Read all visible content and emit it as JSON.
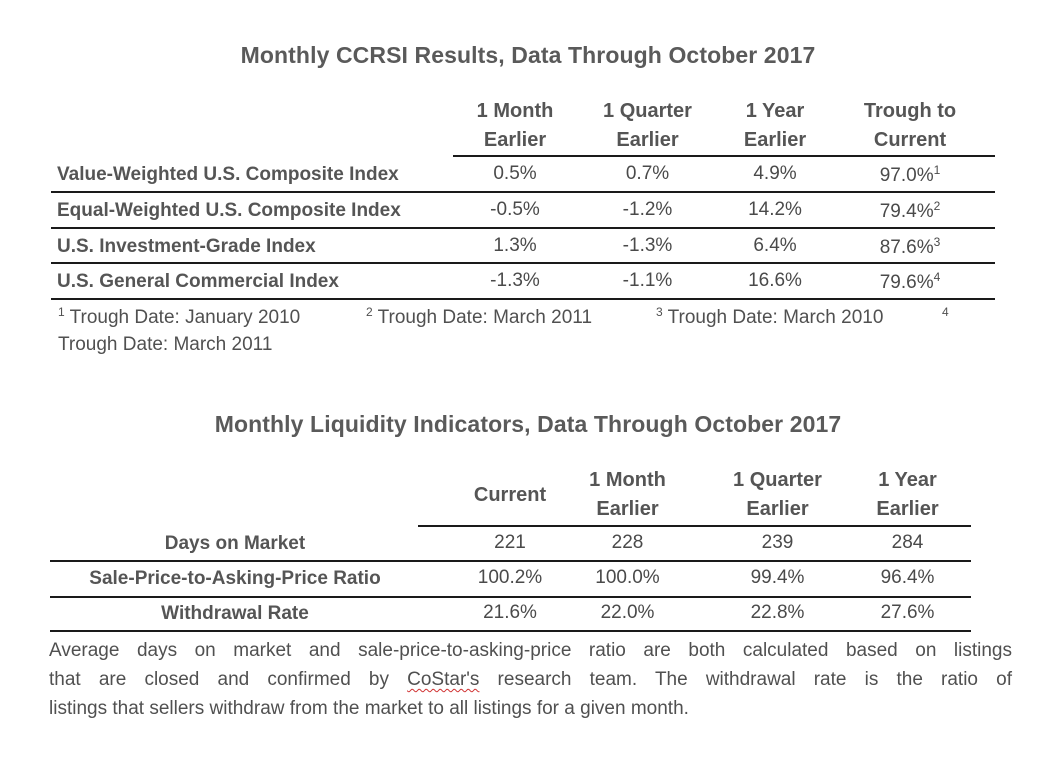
{
  "ccrsi": {
    "title": "Monthly CCRSI Results, Data Through October 2017",
    "columns": [
      {
        "line1": "1 Month",
        "line2": "Earlier"
      },
      {
        "line1": "1 Quarter",
        "line2": "Earlier"
      },
      {
        "line1": "1 Year",
        "line2": "Earlier"
      },
      {
        "line1": "Trough to",
        "line2": "Current"
      }
    ],
    "rows": [
      {
        "label": "Value-Weighted U.S. Composite Index",
        "values": [
          "0.5%",
          "0.7%",
          "4.9%",
          "97.0%"
        ],
        "note": "1"
      },
      {
        "label": "Equal-Weighted U.S. Composite Index",
        "values": [
          "-0.5%",
          "-1.2%",
          "14.2%",
          "79.4%"
        ],
        "note": "2"
      },
      {
        "label": "U.S. Investment-Grade Index",
        "values": [
          "1.3%",
          "-1.3%",
          "6.4%",
          "87.6%"
        ],
        "note": "3"
      },
      {
        "label": "U.S. General Commercial Index",
        "values": [
          "-1.3%",
          "-1.1%",
          "16.6%",
          "79.6%"
        ],
        "note": "4"
      }
    ],
    "footnotes": [
      {
        "num": "1",
        "text": " Trough Date: January 2010"
      },
      {
        "num": "2",
        "text": " Trough Date: March 2011"
      },
      {
        "num": "3",
        "text": " Trough Date: March 2010"
      },
      {
        "num": "4",
        "text": "Trough Date: March 2011"
      }
    ]
  },
  "liquidity": {
    "title": "Monthly Liquidity Indicators, Data Through October 2017",
    "columns": [
      {
        "line1": "Current",
        "line2": ""
      },
      {
        "line1": "1 Month",
        "line2": "Earlier"
      },
      {
        "line1": "1 Quarter",
        "line2": "Earlier"
      },
      {
        "line1": "1 Year",
        "line2": "Earlier"
      }
    ],
    "rows": [
      {
        "label": "Days on Market",
        "values": [
          "221",
          "228",
          "239",
          "284"
        ]
      },
      {
        "label": "Sale-Price-to-Asking-Price Ratio",
        "values": [
          "100.2%",
          "100.0%",
          "99.4%",
          "96.4%"
        ]
      },
      {
        "label": "Withdrawal Rate",
        "values": [
          "21.6%",
          "22.0%",
          "22.8%",
          "27.6%"
        ]
      }
    ]
  },
  "description": {
    "line1": "Average days on market and sale-price-to-asking-price ratio are both calculated based on listings",
    "line2_before": "that are closed and confirmed by ",
    "line2_word": "CoStar's",
    "line2_after": " research team. The withdrawal rate is the ratio of",
    "line3": "listings that sellers withdraw from the market to all listings for a given month."
  }
}
